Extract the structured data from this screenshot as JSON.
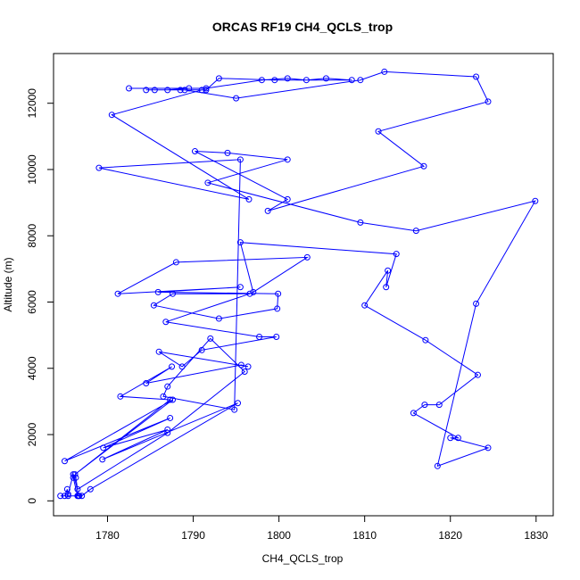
{
  "chart_data": {
    "type": "line",
    "title": "ORCAS RF19 CH4_QCLS_trop",
    "xlabel": "CH4_QCLS_trop",
    "ylabel": "Altitude (m)",
    "xlim": [
      1773.7,
      1832.0
    ],
    "ylim": [
      -450,
      13500
    ],
    "xticks": [
      1780,
      1790,
      1800,
      1810,
      1820,
      1830
    ],
    "yticks": [
      0,
      2000,
      4000,
      6000,
      8000,
      10000,
      12000
    ],
    "grid": false,
    "legend": "none",
    "color": "#0000ff",
    "markers": "open-circle",
    "series": [
      {
        "x": [
          1774.5,
          1775.0,
          1775.3,
          1775.4,
          1776.7,
          1776.5,
          1776.0,
          1776.3,
          1776.6,
          1777.0,
          1778.0,
          1795.2,
          1779.4,
          1787.0,
          1779.5,
          1787.3,
          1775.0,
          1787.6,
          1776.2,
          1787.3,
          1781.5,
          1787.5,
          1784.5,
          1795.6,
          1796.4,
          1786.0,
          1788.7,
          1791.0,
          1799.7,
          1797.7,
          1786.8,
          1796.6,
          1787.6,
          1785.4,
          1793.0,
          1799.8,
          1799.9,
          1785.9,
          1795.5,
          1781.2,
          1788.0,
          1803.3,
          1797.0,
          1795.5,
          1813.7,
          1812.5,
          1812.7,
          1810.0,
          1817.1,
          1823.2,
          1818.7,
          1817.0,
          1815.7,
          1820.9,
          1820.0,
          1824.4,
          1818.5,
          1823.0,
          1829.9,
          1816.0,
          1809.5,
          1791.7,
          1801.0,
          1794.0,
          1790.2,
          1801.0,
          1798.7,
          1816.9,
          1811.6,
          1824.4,
          1823.0,
          1812.3,
          1809.5,
          1795.0,
          1789.0
        ],
        "y": [
          150,
          150,
          350,
          150,
          150,
          150,
          700,
          700,
          150,
          150,
          350,
          2950,
          1250,
          2150,
          1600,
          2500,
          1200,
          3050,
          800,
          3050,
          3150,
          4050,
          3550,
          4100,
          4050,
          4500,
          4050,
          4550,
          4950,
          4950,
          5400,
          6250,
          6250,
          5900,
          5500,
          5800,
          6250,
          6300,
          6450,
          6250,
          7200,
          7350,
          6300,
          7800,
          7450,
          6450,
          6950,
          5900,
          4850,
          3800,
          2900,
          2900,
          2650,
          1900,
          1900,
          1600,
          1050,
          5950,
          9050,
          8150,
          8400,
          9600,
          10300,
          10500,
          10550,
          9100,
          8750,
          10100,
          11150,
          12050,
          12800,
          12950,
          12700,
          12150,
          12400
        ]
      },
      {
        "x": [
          1775.4,
          1776.0,
          1776.5,
          1787.0,
          1796.0,
          1792.0,
          1787.0,
          1786.5,
          1794.8,
          1795.5,
          1779.0,
          1796.5,
          1780.5,
          1791.0,
          1787.0,
          1789.5,
          1782.5,
          1791.5,
          1798.0,
          1801.0,
          1803.2,
          1805.5,
          1808.5,
          1799.5,
          1793.0,
          1791.5,
          1788.5,
          1785.5,
          1784.5
        ],
        "y": [
          200,
          800,
          350,
          2050,
          3900,
          4900,
          3450,
          3150,
          2750,
          10300,
          10050,
          9100,
          11650,
          12400,
          12400,
          12450,
          12450,
          12450,
          12700,
          12750,
          12700,
          12750,
          12700,
          12700,
          12750,
          12400,
          12400,
          12400,
          12400
        ]
      }
    ]
  }
}
